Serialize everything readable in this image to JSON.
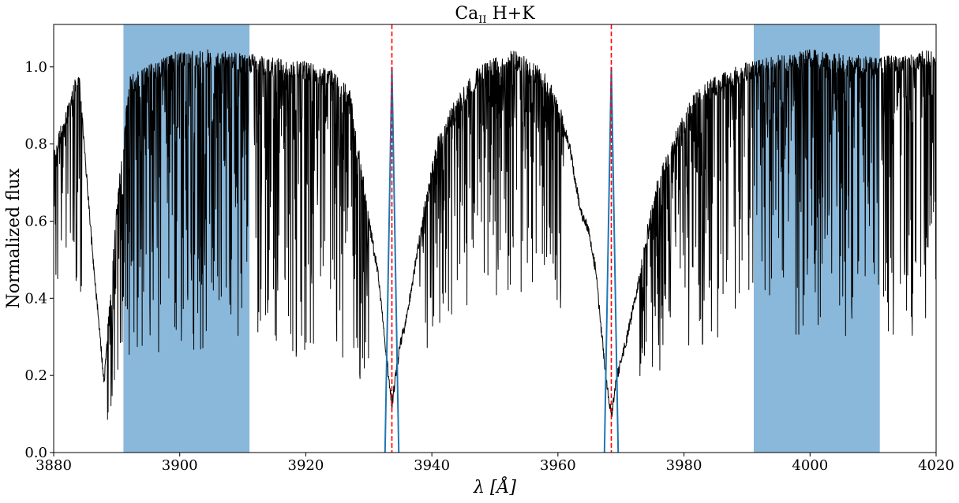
{
  "chart_data": {
    "type": "line",
    "title": {
      "main": "Ca",
      "subscript": "II",
      "suffix": " H+K"
    },
    "xlabel": {
      "symbol": "λ",
      "unit": "[Å]"
    },
    "ylabel": "Normalized flux",
    "xlim": [
      3880,
      4020
    ],
    "ylim": [
      0,
      1.11
    ],
    "xticks": [
      3880,
      3900,
      3920,
      3940,
      3960,
      3980,
      4000,
      4020
    ],
    "yticks": [
      0.0,
      0.2,
      0.4,
      0.6,
      0.8,
      1.0
    ],
    "ytick_labels": [
      "0.0",
      "0.2",
      "0.4",
      "0.6",
      "0.8",
      "1.0"
    ],
    "grid": false,
    "bands": [
      {
        "x0": 3891.07,
        "x1": 3911.07,
        "color": "#8ab8da"
      },
      {
        "x0": 3991.07,
        "x1": 4011.07,
        "color": "#8ab8da"
      }
    ],
    "vlines": [
      {
        "x": 3933.66,
        "color": "#ff0000",
        "style": "dashed"
      },
      {
        "x": 3968.47,
        "color": "#ff0000",
        "style": "dashed"
      }
    ],
    "series": [
      {
        "color": "#000000",
        "style": "solid",
        "envelope_x": [
          3880,
          3884,
          3886,
          3888,
          3890,
          3892,
          3896,
          3900,
          3905,
          3910,
          3915,
          3920,
          3924,
          3927,
          3930,
          3931.5,
          3932.5,
          3933.0,
          3933.66,
          3934.4,
          3935.0,
          3936.0,
          3937.5,
          3939,
          3941,
          3944,
          3947,
          3950,
          3953,
          3955,
          3957.5,
          3960,
          3962,
          3963.5,
          3965,
          3966.0,
          3967.0,
          3967.6,
          3968.47,
          3969.3,
          3970.0,
          3971.0,
          3972.5,
          3974,
          3976,
          3979,
          3982,
          3986,
          3990,
          4000,
          4010,
          4020
        ],
        "envelope_y": [
          0.76,
          0.98,
          0.55,
          0.18,
          0.62,
          0.95,
          0.99,
          1.02,
          1.02,
          1.01,
          1.0,
          0.99,
          0.97,
          0.92,
          0.6,
          0.46,
          0.3,
          0.22,
          0.12,
          0.22,
          0.28,
          0.35,
          0.5,
          0.64,
          0.8,
          0.9,
          0.97,
          1.0,
          1.02,
          1.0,
          0.97,
          0.9,
          0.78,
          0.63,
          0.57,
          0.47,
          0.3,
          0.2,
          0.09,
          0.19,
          0.24,
          0.3,
          0.42,
          0.55,
          0.7,
          0.82,
          0.92,
          0.96,
          0.99,
          1.02,
          1.0,
          1.02
        ],
        "noise": [
          {
            "x0": 3880,
            "x1": 3884.5,
            "amp": 0.55
          },
          {
            "x0": 3888.5,
            "x1": 3930,
            "amp": 0.75
          },
          {
            "x0": 3938,
            "x1": 3961,
            "amp": 0.6
          },
          {
            "x0": 3973,
            "x1": 4020,
            "amp": 0.7
          }
        ]
      },
      {
        "color": "#1f77b4",
        "style": "solid",
        "profile": "triangular",
        "peaks": [
          {
            "center": 3933.66,
            "half_width": 1.09,
            "height": 1.0
          },
          {
            "center": 3968.47,
            "half_width": 1.09,
            "height": 1.0
          }
        ]
      }
    ]
  }
}
